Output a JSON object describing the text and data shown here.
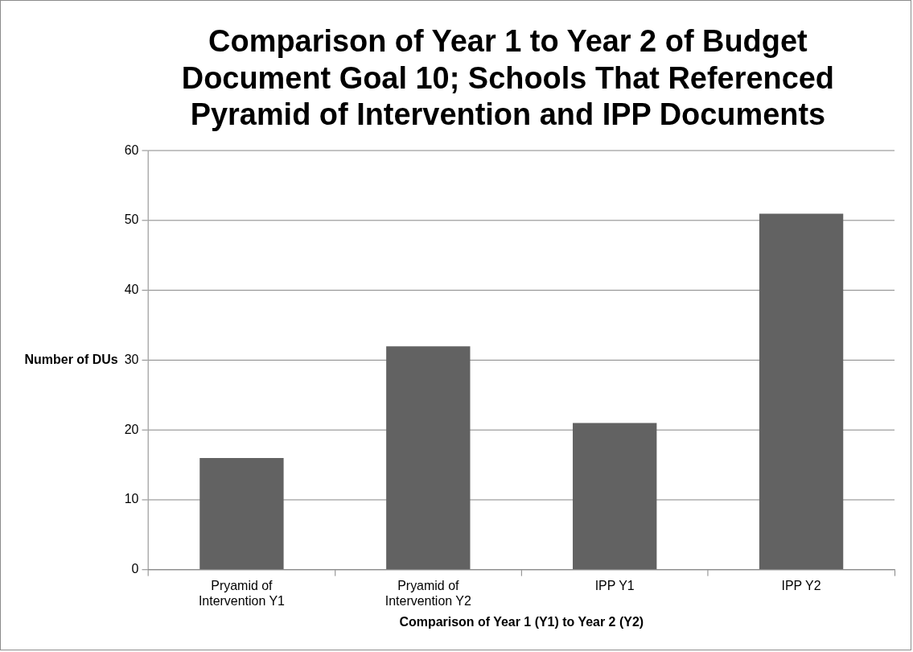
{
  "chart_data": {
    "type": "bar",
    "title": "Comparison of Year 1 to Year 2 of Budget Document Goal 10; Schools That Referenced Pyramid of Intervention and IPP Documents",
    "xlabel": "Comparison of Year 1 (Y1) to Year 2 (Y2)",
    "ylabel": "Number of DUs",
    "categories": [
      "Pryamid of Intervention Y1",
      "Pryamid of Intervention Y2",
      "IPP Y1",
      "IPP Y2"
    ],
    "values": [
      16,
      32,
      21,
      51
    ],
    "color": "#626262",
    "ylim": [
      0,
      60
    ],
    "yticks": [
      0,
      10,
      20,
      30,
      40,
      50,
      60
    ],
    "grid": "y",
    "legend": false
  }
}
